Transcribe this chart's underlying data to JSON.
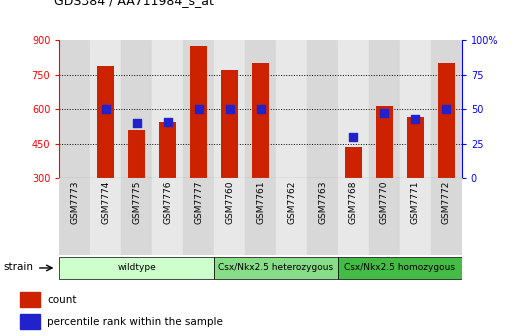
{
  "title": "GDS384 / AA711984_s_at",
  "samples": [
    "GSM7773",
    "GSM7774",
    "GSM7775",
    "GSM7776",
    "GSM7777",
    "GSM7760",
    "GSM7761",
    "GSM7762",
    "GSM7763",
    "GSM7768",
    "GSM7770",
    "GSM7771",
    "GSM7772"
  ],
  "counts": [
    300,
    790,
    510,
    545,
    875,
    770,
    800,
    300,
    300,
    435,
    615,
    565,
    800
  ],
  "percentiles": [
    null,
    50,
    40,
    41,
    50,
    50,
    50,
    null,
    null,
    30,
    47,
    43,
    50
  ],
  "ylim": [
    300,
    900
  ],
  "yticks": [
    300,
    450,
    600,
    750,
    900
  ],
  "y2lim": [
    0,
    100
  ],
  "y2ticks": [
    0,
    25,
    50,
    75,
    100
  ],
  "bar_color": "#cc2200",
  "dot_color": "#2222cc",
  "bar_width": 0.55,
  "groups": [
    {
      "label": "wildtype",
      "start": 0,
      "end": 4,
      "color": "#ccffcc"
    },
    {
      "label": "Csx/Nkx2.5 heterozygous",
      "start": 5,
      "end": 8,
      "color": "#88dd88"
    },
    {
      "label": "Csx/Nkx2.5 homozygous",
      "start": 9,
      "end": 12,
      "color": "#44bb44"
    }
  ],
  "legend_items": [
    {
      "label": "count",
      "color": "#cc2200"
    },
    {
      "label": "percentile rank within the sample",
      "color": "#2222cc"
    }
  ],
  "xlabel_strain": "strain",
  "col_bg_even": "#d8d8d8",
  "col_bg_odd": "#e8e8e8",
  "plot_bg": "#ffffff"
}
